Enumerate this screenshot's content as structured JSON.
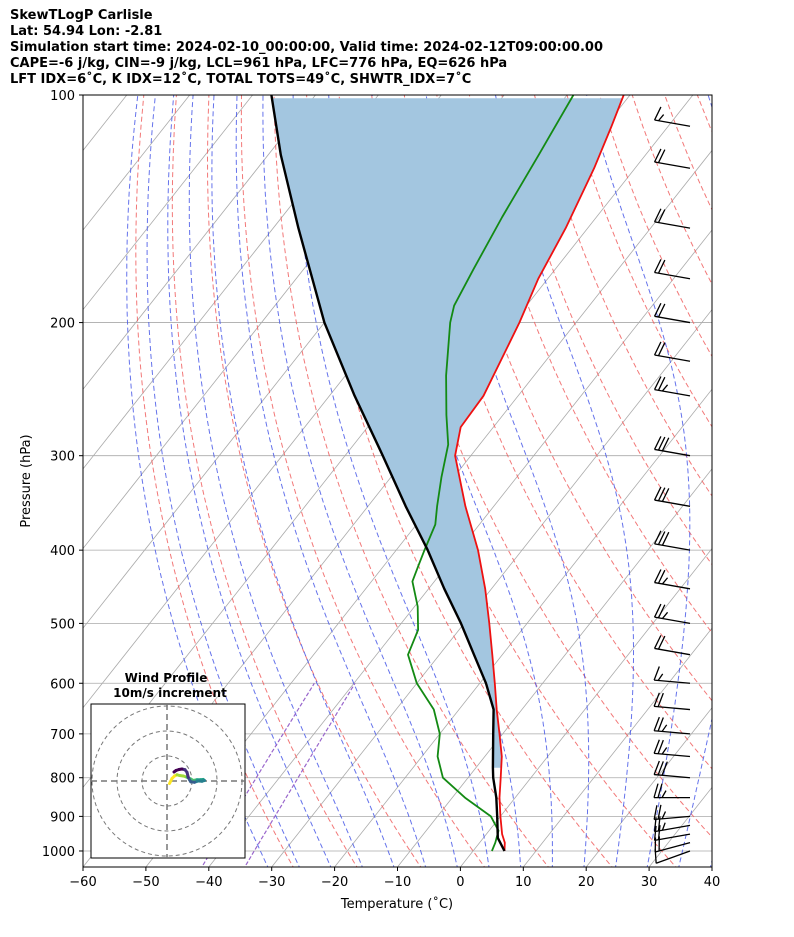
{
  "header": {
    "line1": "SkewTLogP Carlisle",
    "line2": "Lat: 54.94   Lon: -2.81",
    "line3": "Simulation start time: 2024-02-10_00:00:00, Valid time: 2024-02-12T09:00:00.00",
    "line4": "CAPE=-6 j/kg, CIN=-9 j/kg, LCL=961 hPa, LFC=776 hPa, EQ=626 hPa",
    "line5": "LFT IDX=6˚C, K IDX=12˚C, TOTAL TOTS=49˚C, SHWTR_IDX=7˚C"
  },
  "chart_data": {
    "type": "line",
    "xlabel": "Temperature (˚C)",
    "ylabel": "Pressure (hPa)",
    "xlim": [
      -60,
      40
    ],
    "ylim": [
      1050,
      100
    ],
    "yscale": "log",
    "skew": true,
    "grid": true,
    "x_ticks": [
      "−60",
      "−50",
      "−40",
      "−30",
      "−20",
      "−10",
      "0",
      "10",
      "20",
      "30",
      "40"
    ],
    "y_ticks": [
      "100",
      "200",
      "300",
      "400",
      "500",
      "600",
      "700",
      "800",
      "900",
      "1000"
    ],
    "colors": {
      "temperature": "#ee1111",
      "dewpoint": "#138a13",
      "parcel": "#000000",
      "cape_fill": "#a3c6e0",
      "dry_adiabat": "#f06060",
      "moist_adiabat": "#4a5ae8",
      "isotherm": "#aaaaaa",
      "mixing_ratio": "#9966cc"
    },
    "series": [
      {
        "key": "temperature",
        "points": [
          [
            1000,
            5.0
          ],
          [
            975,
            4.0
          ],
          [
            950,
            2.5
          ],
          [
            900,
            0.0
          ],
          [
            850,
            -2.5
          ],
          [
            800,
            -4.8
          ],
          [
            750,
            -7.3
          ],
          [
            700,
            -10.5
          ],
          [
            650,
            -14.0
          ],
          [
            600,
            -17.6
          ],
          [
            550,
            -21.6
          ],
          [
            500,
            -26.0
          ],
          [
            450,
            -31.0
          ],
          [
            400,
            -37.0
          ],
          [
            350,
            -44.5
          ],
          [
            300,
            -52.5
          ],
          [
            275,
            -55.2
          ],
          [
            250,
            -55.5
          ],
          [
            220,
            -57.5
          ],
          [
            200,
            -59.0
          ],
          [
            175,
            -61.5
          ],
          [
            150,
            -63.5
          ],
          [
            125,
            -66.5
          ],
          [
            110,
            -69.0
          ],
          [
            100,
            -71.0
          ]
        ]
      },
      {
        "key": "dewpoint",
        "points": [
          [
            1000,
            3.0
          ],
          [
            975,
            2.5
          ],
          [
            940,
            1.5
          ],
          [
            900,
            -1.5
          ],
          [
            850,
            -8.0
          ],
          [
            800,
            -14.0
          ],
          [
            750,
            -17.5
          ],
          [
            700,
            -20.0
          ],
          [
            650,
            -24.0
          ],
          [
            600,
            -30.0
          ],
          [
            550,
            -35.0
          ],
          [
            510,
            -36.5
          ],
          [
            475,
            -39.5
          ],
          [
            440,
            -43.5
          ],
          [
            420,
            -44.5
          ],
          [
            400,
            -45.5
          ],
          [
            370,
            -47.0
          ],
          [
            350,
            -49.0
          ],
          [
            320,
            -52.0
          ],
          [
            290,
            -55.0
          ],
          [
            265,
            -59.0
          ],
          [
            235,
            -64.0
          ],
          [
            200,
            -70.0
          ],
          [
            190,
            -71.5
          ],
          [
            170,
            -73.0
          ],
          [
            145,
            -75.0
          ],
          [
            120,
            -77.0
          ],
          [
            100,
            -79.0
          ]
        ]
      },
      {
        "key": "parcel",
        "points": [
          [
            1000,
            5.0
          ],
          [
            961,
            2.3
          ],
          [
            900,
            -0.5
          ],
          [
            850,
            -3.0
          ],
          [
            800,
            -6.0
          ],
          [
            776,
            -7.3
          ],
          [
            700,
            -11.5
          ],
          [
            650,
            -14.5
          ],
          [
            600,
            -19.0
          ],
          [
            550,
            -24.5
          ],
          [
            500,
            -30.5
          ],
          [
            450,
            -37.5
          ],
          [
            400,
            -45.0
          ],
          [
            350,
            -54.0
          ],
          [
            300,
            -64.0
          ],
          [
            250,
            -76.0
          ],
          [
            200,
            -90.0
          ],
          [
            150,
            -106.0
          ],
          [
            120,
            -118.0
          ],
          [
            100,
            -127.0
          ]
        ]
      }
    ],
    "wind_barbs": {
      "levels": [
        1000,
        975,
        950,
        925,
        900,
        850,
        800,
        750,
        700,
        650,
        600,
        550,
        500,
        450,
        400,
        350,
        300,
        250,
        225,
        200,
        175,
        150,
        125,
        110
      ],
      "speeds_kt": [
        10,
        20,
        20,
        25,
        25,
        25,
        30,
        25,
        25,
        20,
        15,
        20,
        25,
        25,
        30,
        30,
        30,
        25,
        20,
        20,
        20,
        20,
        20,
        15
      ],
      "directions_deg": [
        250,
        255,
        260,
        260,
        265,
        270,
        275,
        275,
        275,
        275,
        275,
        280,
        280,
        280,
        280,
        280,
        280,
        280,
        280,
        280,
        280,
        280,
        280,
        280
      ]
    },
    "inset": {
      "title_line1": "Wind Profile",
      "title_line2": "10m/s increment",
      "ring_step_ms": 10,
      "ring_count": 3,
      "hodograph": [
        [
          1.0,
          -1.0
        ],
        [
          2.0,
          1.0
        ],
        [
          3.0,
          2.0
        ],
        [
          4.0,
          2.5
        ],
        [
          5.0,
          2.2
        ],
        [
          6.5,
          2.0
        ],
        [
          8.0,
          1.5
        ],
        [
          9.5,
          0.8
        ],
        [
          10.5,
          0.2
        ],
        [
          12.0,
          0.5
        ],
        [
          13.5,
          0.5
        ],
        [
          14.5,
          0.6
        ],
        [
          15.0,
          0.2
        ],
        [
          14.0,
          -0.1
        ],
        [
          12.5,
          0.0
        ],
        [
          11.0,
          -0.5
        ],
        [
          9.5,
          -0.3
        ],
        [
          9.0,
          0.5
        ],
        [
          8.5,
          1.5
        ],
        [
          8.0,
          3.5
        ],
        [
          7.2,
          4.5
        ],
        [
          6.0,
          4.8
        ],
        [
          4.8,
          4.6
        ],
        [
          3.6,
          4.2
        ],
        [
          2.8,
          3.6
        ]
      ]
    }
  }
}
